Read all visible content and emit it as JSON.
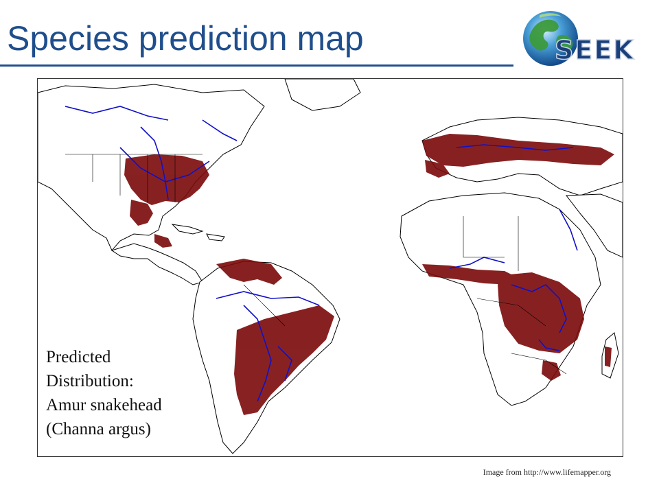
{
  "slide": {
    "title": "Species prediction map"
  },
  "logo": {
    "text": "SEEK",
    "globe_color": "#2e8b57",
    "text_color": "#1a3f7a"
  },
  "map": {
    "caption_lines": [
      "Predicted",
      "Distribution:",
      "Amur snakehead",
      "(Channa argus)"
    ],
    "distribution_color": "#7b0a0a",
    "river_color": "#1010c8",
    "coastline_color": "#000000"
  },
  "credit": "Image from http://www.lifemapper.org"
}
